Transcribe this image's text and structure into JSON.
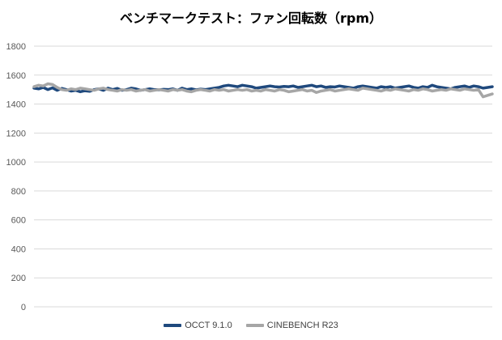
{
  "chart_data": {
    "type": "line",
    "title": "ベンチマークテスト：ファン回転数（rpm）",
    "xlabel": "",
    "ylabel": "",
    "ylim": [
      0,
      1800
    ],
    "yticks": [
      "0",
      "200",
      "400",
      "600",
      "800",
      "1000",
      "1200",
      "1400",
      "1600",
      "1800"
    ],
    "grid": true,
    "legend_position": "bottom",
    "series": [
      {
        "name": "OCCT 9.1.0",
        "color": "#1F497D",
        "values": [
          1510,
          1505,
          1515,
          1500,
          1512,
          1495,
          1508,
          1500,
          1490,
          1495,
          1485,
          1492,
          1488,
          1500,
          1505,
          1495,
          1510,
          1500,
          1508,
          1495,
          1500,
          1510,
          1505,
          1495,
          1500,
          1505,
          1500,
          1498,
          1502,
          1500,
          1505,
          1495,
          1510,
          1500,
          1505,
          1498,
          1503,
          1500,
          1505,
          1510,
          1515,
          1525,
          1530,
          1525,
          1520,
          1530,
          1525,
          1520,
          1510,
          1515,
          1520,
          1525,
          1520,
          1518,
          1522,
          1520,
          1525,
          1515,
          1520,
          1525,
          1530,
          1520,
          1525,
          1515,
          1520,
          1518,
          1525,
          1520,
          1515,
          1510,
          1520,
          1525,
          1520,
          1515,
          1510,
          1520,
          1515,
          1520,
          1510,
          1515,
          1520,
          1525,
          1515,
          1510,
          1520,
          1515,
          1530,
          1520,
          1515,
          1510,
          1505,
          1515,
          1520,
          1525,
          1515,
          1525,
          1520,
          1510,
          1515,
          1520
        ]
      },
      {
        "name": "CINEBENCH R23",
        "color": "#A6A6A6",
        "values": [
          1520,
          1530,
          1525,
          1540,
          1535,
          1515,
          1500,
          1495,
          1505,
          1500,
          1510,
          1505,
          1500,
          1495,
          1505,
          1510,
          1500,
          1495,
          1490,
          1500,
          1495,
          1500,
          1490,
          1495,
          1500,
          1490,
          1495,
          1500,
          1495,
          1490,
          1500,
          1495,
          1500,
          1490,
          1485,
          1495,
          1500,
          1495,
          1490,
          1500,
          1495,
          1500,
          1490,
          1495,
          1500,
          1495,
          1500,
          1490,
          1495,
          1490,
          1500,
          1495,
          1490,
          1500,
          1495,
          1485,
          1490,
          1495,
          1500,
          1490,
          1495,
          1480,
          1490,
          1495,
          1500,
          1490,
          1495,
          1500,
          1505,
          1500,
          1495,
          1510,
          1505,
          1500,
          1495,
          1490,
          1500,
          1495,
          1505,
          1500,
          1495,
          1490,
          1500,
          1495,
          1505,
          1500,
          1490,
          1495,
          1500,
          1495,
          1505,
          1500,
          1495,
          1505,
          1500,
          1495,
          1500,
          1450,
          1460,
          1470
        ]
      }
    ]
  }
}
